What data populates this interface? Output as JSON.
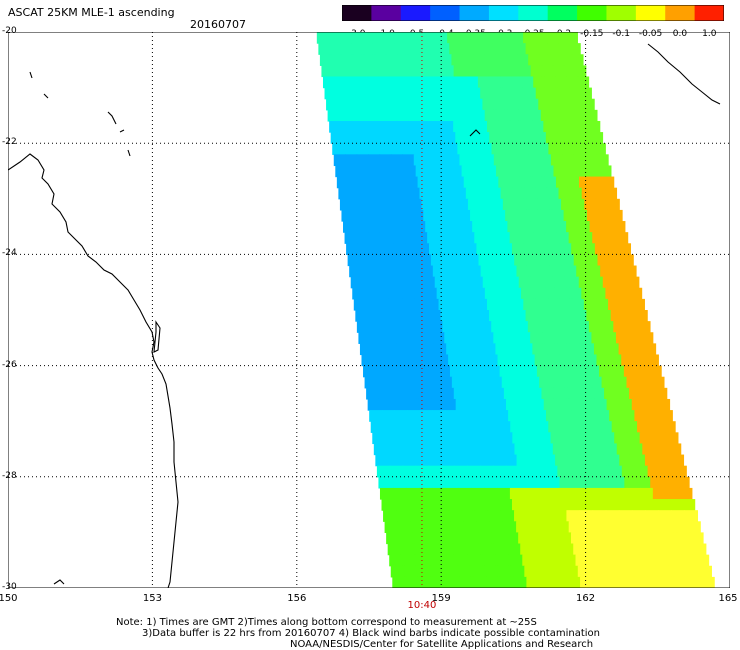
{
  "header": {
    "title": "ASCAT 25KM MLE-1 ascending",
    "date": "20160707"
  },
  "colorbar": {
    "labels": [
      "-3.0",
      "-1.0",
      "-0.5",
      "-0.4",
      "-0.35",
      "-0.3",
      "-0.25",
      "-0.2",
      "-0.15",
      "-0.1",
      "-0.05",
      "0.0",
      "1.0"
    ],
    "colors": [
      "#1a0020",
      "#5a00a0",
      "#1a1aff",
      "#0060ff",
      "#00aaff",
      "#00e0ff",
      "#00ffd0",
      "#00ff60",
      "#40ff00",
      "#a0ff00",
      "#ffff00",
      "#ffa000",
      "#ff2000"
    ]
  },
  "map": {
    "lon_labels": [
      "150",
      "153",
      "156",
      "159",
      "162",
      "165"
    ],
    "lat_labels": [
      "-20",
      "-22",
      "-24",
      "-26",
      "-28",
      "-30"
    ],
    "lon_range": [
      150,
      165
    ],
    "lat_range": [
      -30,
      -20
    ],
    "time_label": "10:40",
    "time_label_lon": 158.6
  },
  "notes": {
    "line1": "Note: 1) Times are GMT 2)Times along bottom correspond to measurement at ~25S",
    "line2": "3)Data buffer is 22 hrs from 20160707 4) Black wind barbs indicate possible contamination",
    "line3": "NOAA/NESDIS/Center for Satellite Applications and Research"
  }
}
